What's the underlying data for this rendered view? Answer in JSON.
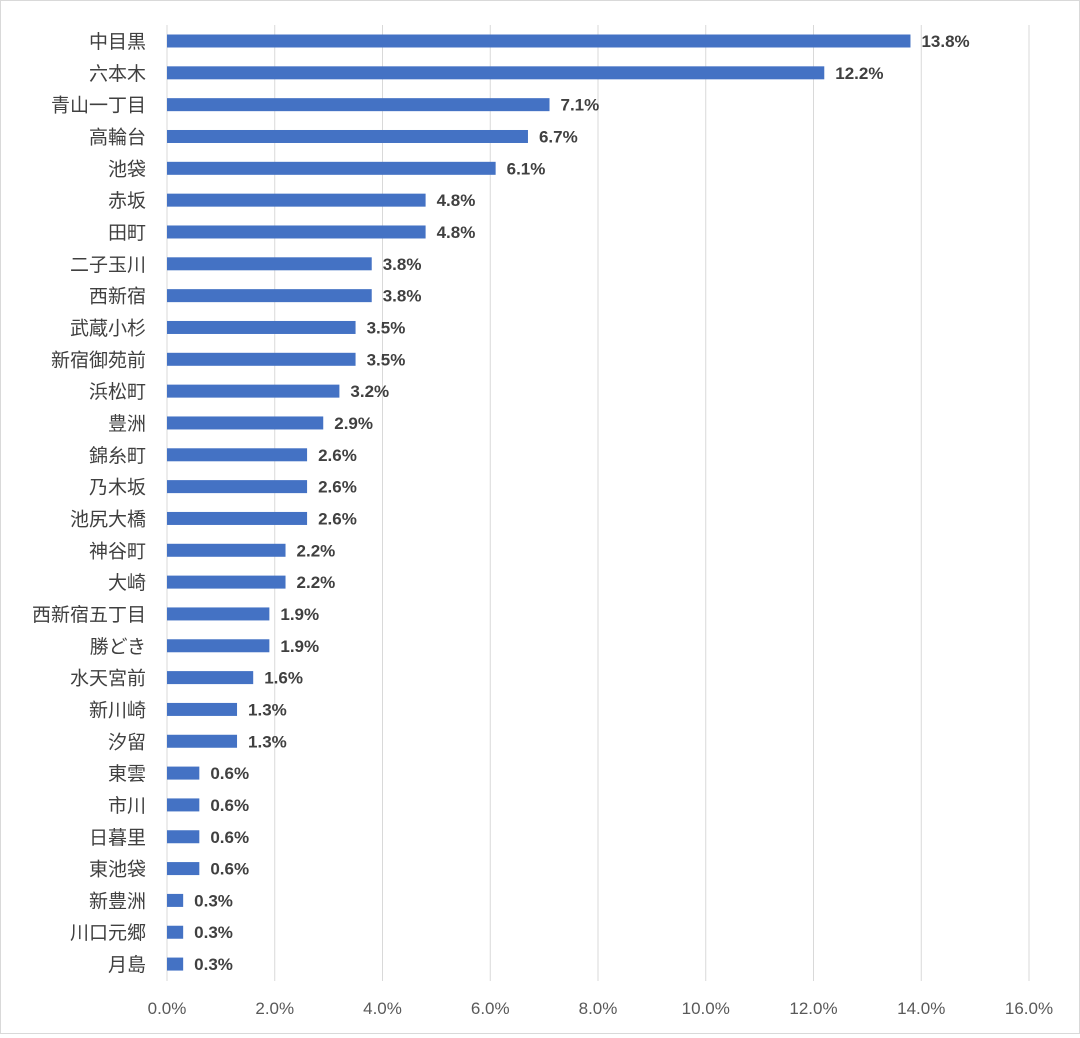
{
  "chart_data": {
    "type": "bar",
    "orientation": "horizontal",
    "title": "",
    "xlabel": "",
    "ylabel": "",
    "categories": [
      "中目黒",
      "六本木",
      "青山一丁目",
      "高輪台",
      "池袋",
      "赤坂",
      "田町",
      "二子玉川",
      "西新宿",
      "武蔵小杉",
      "新宿御苑前",
      "浜松町",
      "豊洲",
      "錦糸町",
      "乃木坂",
      "池尻大橋",
      "神谷町",
      "大崎",
      "西新宿五丁目",
      "勝どき",
      "水天宮前",
      "新川崎",
      "汐留",
      "東雲",
      "市川",
      "日暮里",
      "東池袋",
      "新豊洲",
      "川口元郷",
      "月島"
    ],
    "values": [
      13.8,
      12.2,
      7.1,
      6.7,
      6.1,
      4.8,
      4.8,
      3.8,
      3.8,
      3.5,
      3.5,
      3.2,
      2.9,
      2.6,
      2.6,
      2.6,
      2.2,
      2.2,
      1.9,
      1.9,
      1.6,
      1.3,
      1.3,
      0.6,
      0.6,
      0.6,
      0.6,
      0.3,
      0.3,
      0.3
    ],
    "data_labels": [
      "13.8%",
      "12.2%",
      "7.1%",
      "6.7%",
      "6.1%",
      "4.8%",
      "4.8%",
      "3.8%",
      "3.8%",
      "3.5%",
      "3.5%",
      "3.2%",
      "2.9%",
      "2.6%",
      "2.6%",
      "2.6%",
      "2.2%",
      "2.2%",
      "1.9%",
      "1.9%",
      "1.6%",
      "1.3%",
      "1.3%",
      "0.6%",
      "0.6%",
      "0.6%",
      "0.6%",
      "0.3%",
      "0.3%",
      "0.3%"
    ],
    "xlim": [
      0,
      16
    ],
    "xticks": [
      0,
      2,
      4,
      6,
      8,
      10,
      12,
      14,
      16
    ],
    "xtick_labels": [
      "0.0%",
      "2.0%",
      "4.0%",
      "6.0%",
      "8.0%",
      "10.0%",
      "12.0%",
      "14.0%",
      "16.0%"
    ],
    "grid": "vertical",
    "legend": "none",
    "bar_color": "#4472c4"
  }
}
